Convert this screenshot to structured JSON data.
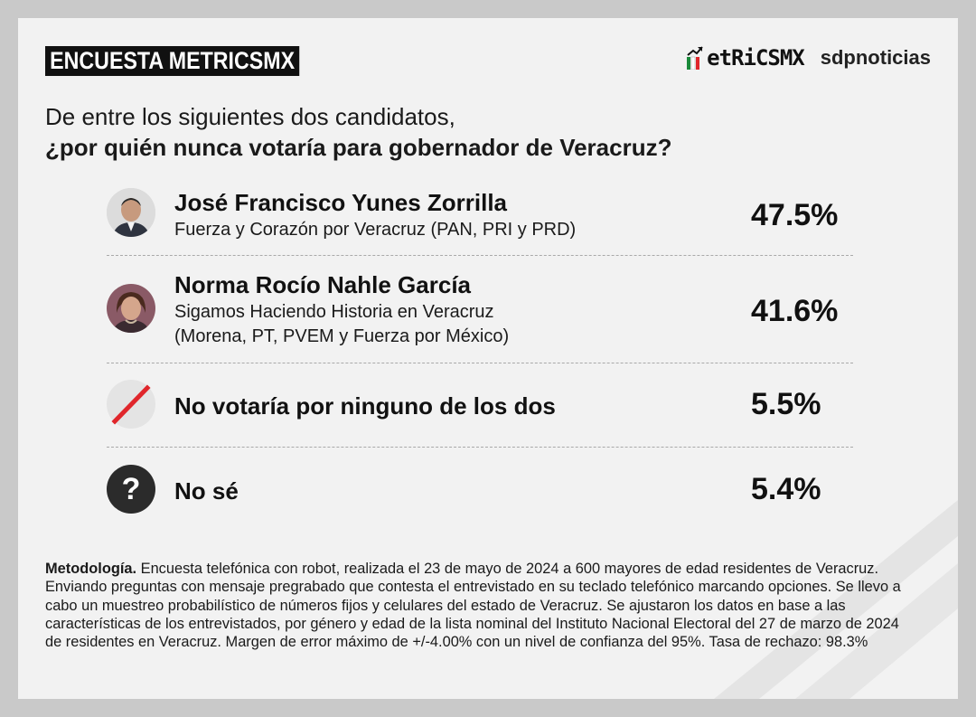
{
  "header": {
    "tag": "ENCUESTA METRICSMX",
    "logo_metrics": "etRiCSMX",
    "logo_sdp": "sdpnoticias"
  },
  "question": {
    "line1": "De entre los siguientes dos candidatos,",
    "line2": "¿por quién nunca votaría para gobernador de Veracruz?"
  },
  "chart_data": {
    "type": "table",
    "rows": [
      {
        "name": "José Francisco Yunes Zorrilla",
        "party": "Fuerza y Corazón por Veracruz (PAN, PRI y PRD)",
        "party2": "",
        "value": 47.5,
        "label": "47.5%",
        "icon": "candidate-photo-man"
      },
      {
        "name": "Norma Rocío Nahle García",
        "party": "Sigamos Haciendo Historia en Veracruz",
        "party2": "(Morena, PT, PVEM y Fuerza por México)",
        "value": 41.6,
        "label": "41.6%",
        "icon": "candidate-photo-woman"
      },
      {
        "name": "No votaría por ninguno de los dos",
        "party": "",
        "party2": "",
        "value": 5.5,
        "label": "5.5%",
        "icon": "crossed-out-icon"
      },
      {
        "name": "No sé",
        "party": "",
        "party2": "",
        "value": 5.4,
        "label": "5.4%",
        "icon": "question-mark-icon"
      }
    ]
  },
  "methodology": {
    "label": "Metodología.",
    "text": " Encuesta telefónica con robot, realizada el 23 de mayo de 2024 a 600 mayores de edad residentes de Veracruz. Enviando preguntas con mensaje pregrabado que contesta el entrevistado en su teclado telefónico marcando opciones. Se llevo a cabo un muestreo probabilístico de números fijos y celulares del estado de Veracruz. Se ajustaron los datos en base a las características de los entrevistados, por género y edad de la lista nominal del Instituto Nacional Electoral del 27 de marzo de 2024 de residentes en Veracruz. Margen de error máximo de +/-4.00% con un nivel de confianza del 95%. Tasa de rechazo: 98.3%"
  },
  "colors": {
    "accent_red": "#e0262b",
    "logo_green": "#1a8a3a",
    "text": "#111111"
  }
}
